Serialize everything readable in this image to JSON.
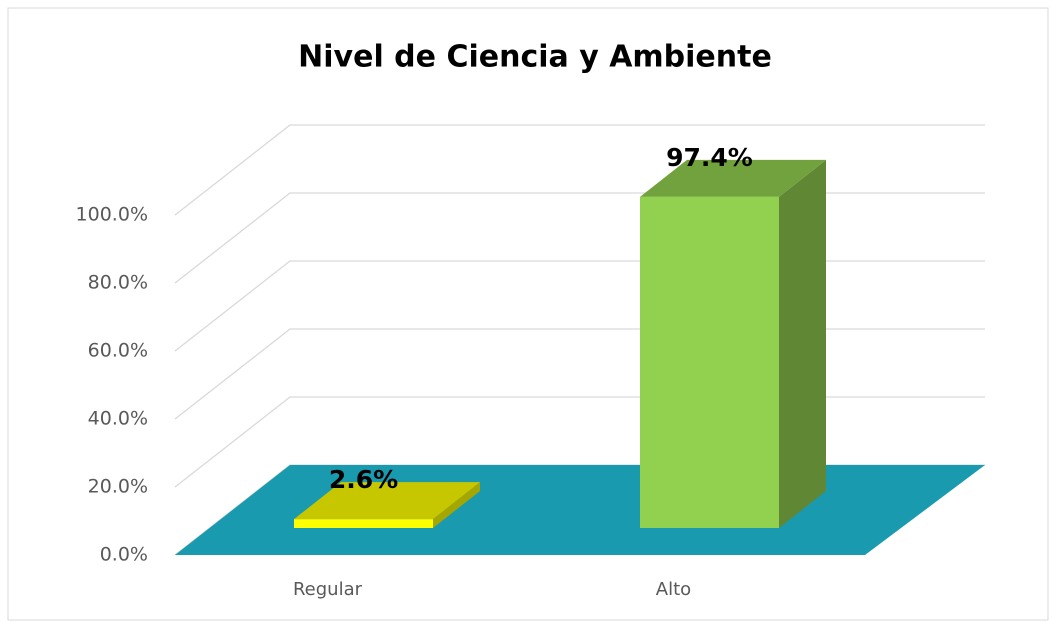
{
  "chart_data": {
    "type": "bar3d",
    "title": "Nivel de Ciencia y Ambiente",
    "categories": [
      "Regular",
      "Alto"
    ],
    "values": [
      2.6,
      97.4
    ],
    "value_labels": [
      "2.6%",
      "97.4%"
    ],
    "colors": [
      "#ffff00",
      "#92d050"
    ],
    "floor_color": "#1a9aae",
    "ylim": [
      0,
      100
    ],
    "yticks": [
      {
        "value": 0,
        "label": "0.0%"
      },
      {
        "value": 20,
        "label": "20.0%"
      },
      {
        "value": 40,
        "label": "40.0%"
      },
      {
        "value": 60,
        "label": "60.0%"
      },
      {
        "value": 80,
        "label": "80.0%"
      },
      {
        "value": 100,
        "label": "100.0%"
      }
    ],
    "grid": true
  }
}
